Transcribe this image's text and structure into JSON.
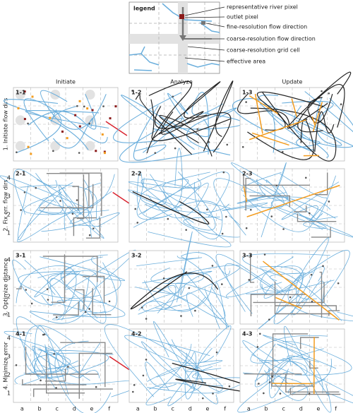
{
  "legend": {
    "title": "legend",
    "items": [
      "representative river pixel",
      "outlet pixel",
      "fine-resolution flow direction",
      "coarse-resolution flow direction",
      "coarse-resolution grid cell",
      "effective area"
    ]
  },
  "columns": [
    "Initiate",
    "Analyze",
    "Update"
  ],
  "rows": [
    "1. Initiate flow dirs",
    "2. Fix err. flow dirs",
    "3. Optimize distance",
    "4. Minimize error"
  ],
  "panels": [
    [
      "1-1",
      "1-2",
      "1-3"
    ],
    [
      "2-1",
      "2-2",
      "2-3"
    ],
    [
      "3-1",
      "3-2",
      "3-3"
    ],
    [
      "4-1",
      "4-2",
      "4-3"
    ]
  ],
  "axis": {
    "y": [
      "1",
      "2",
      "3",
      "4"
    ],
    "x": [
      "a",
      "b",
      "c",
      "d",
      "e",
      "f"
    ]
  }
}
